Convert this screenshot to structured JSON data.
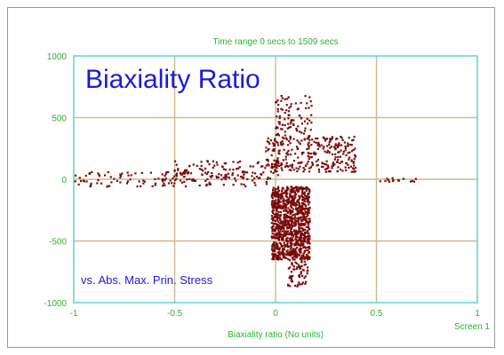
{
  "colors": {
    "background": "#ffffff",
    "plot_border": "#5fd3c4",
    "grid": "#c9ba8e",
    "axis_text": "#2fb02f",
    "title_text": "#1b1bd6",
    "points": "#7a0a0a"
  },
  "chart_data": {
    "type": "scatter",
    "header": "Time range 0 secs to 1509 secs",
    "title": "Biaxiality Ratio",
    "subtitle": "vs. Abs. Max. Prin. Stress",
    "xlabel": "Biaxiality ratio (No units)",
    "corner_label": "Screen 1",
    "xlim": [
      -1,
      1
    ],
    "ylim": [
      -1000,
      1000
    ],
    "xticks": [
      -1,
      -0.5,
      0,
      0.5,
      1
    ],
    "xtick_labels": [
      "-1",
      "-0.5",
      "0",
      "0.5",
      "1"
    ],
    "yticks": [
      -1000,
      -500,
      0,
      500,
      1000
    ],
    "ytick_labels": [
      "-1000",
      "-500",
      "0",
      "500",
      "1000"
    ],
    "grid": true,
    "series": [
      {
        "clusters": [
          {
            "x": [
              -1.0,
              0.0
            ],
            "y": [
              -60,
              60
            ],
            "n": 130
          },
          {
            "x": [
              -0.5,
              0.05
            ],
            "y": [
              0,
              150
            ],
            "n": 110
          },
          {
            "x": [
              -0.05,
              0.4
            ],
            "y": [
              60,
              350
            ],
            "n": 300
          },
          {
            "x": [
              0.0,
              0.18
            ],
            "y": [
              350,
              680
            ],
            "n": 90
          },
          {
            "x": [
              -0.02,
              0.17
            ],
            "y": [
              -650,
              -60
            ],
            "n": 1000
          },
          {
            "x": [
              0.06,
              0.16
            ],
            "y": [
              -870,
              -620
            ],
            "n": 70
          },
          {
            "x": [
              0.5,
              0.7
            ],
            "y": [
              -20,
              20
            ],
            "n": 15
          }
        ]
      }
    ]
  }
}
